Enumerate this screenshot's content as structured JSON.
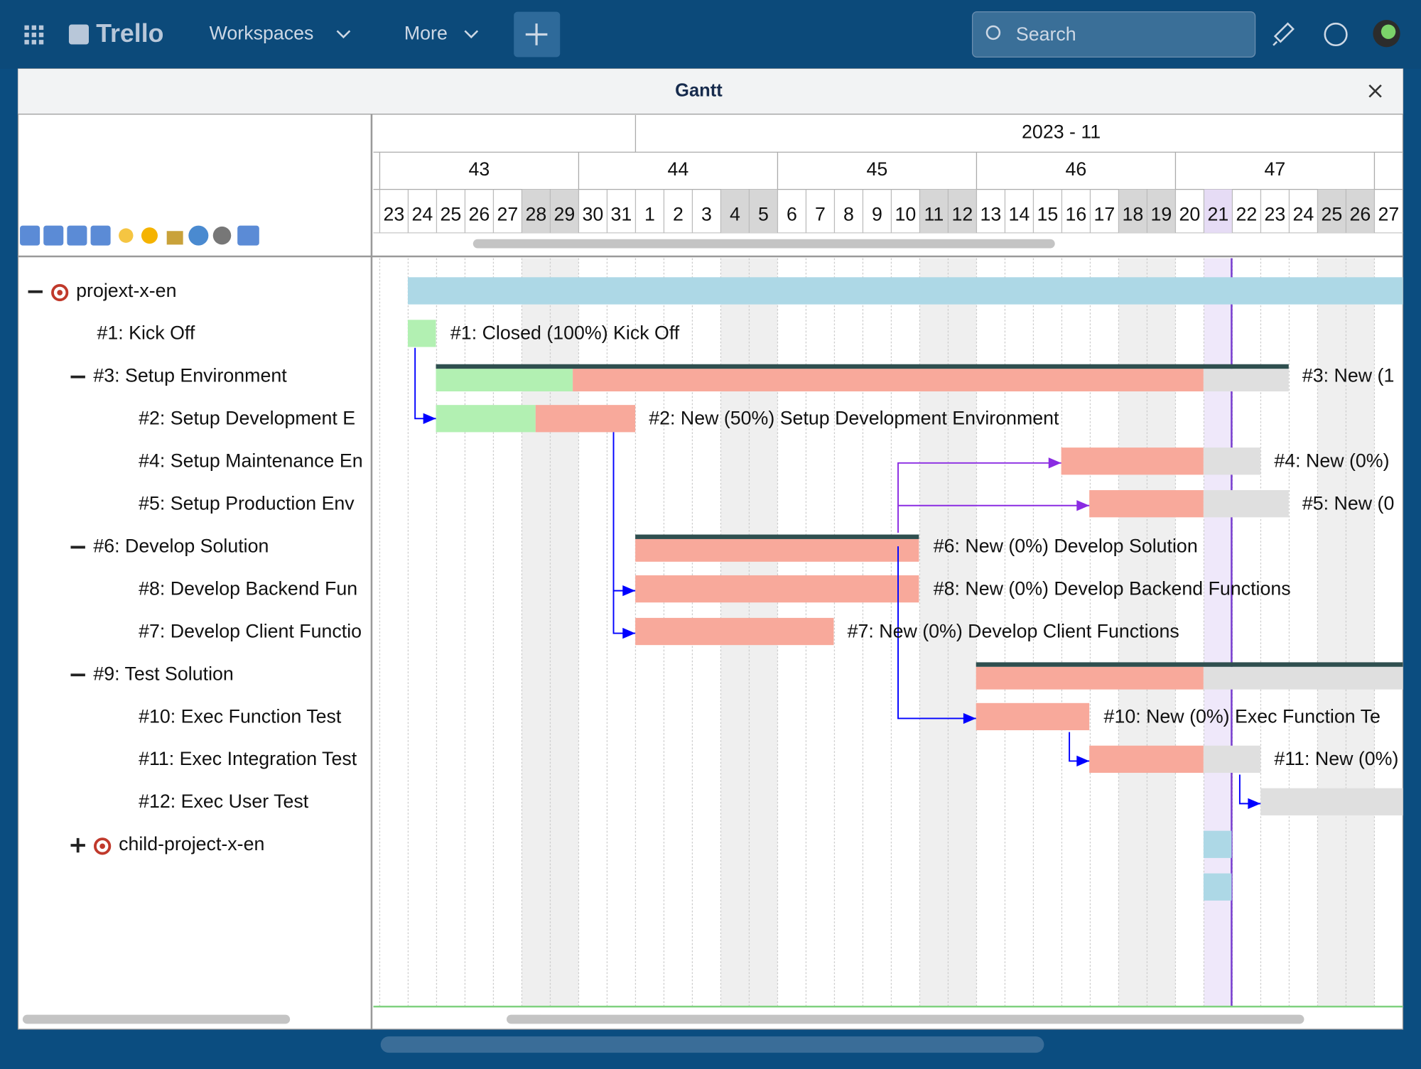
{
  "nav": {
    "logo": "Trello",
    "menus": [
      "Workspaces",
      "More"
    ],
    "search": "Search"
  },
  "gantt": {
    "title": "Gantt",
    "month": "2023 - 11",
    "weeks": [
      "43",
      "44",
      "45",
      "46",
      "47"
    ],
    "days": [
      "23",
      "24",
      "25",
      "26",
      "27",
      "28",
      "29",
      "30",
      "31",
      "1",
      "2",
      "3",
      "4",
      "5",
      "6",
      "7",
      "8",
      "9",
      "10",
      "11",
      "12",
      "13",
      "14",
      "15",
      "16",
      "17",
      "18",
      "19",
      "20",
      "21",
      "22",
      "23",
      "24",
      "25",
      "26",
      "27"
    ],
    "tree": [
      "projext-x-en",
      "#1: Kick Off",
      "#3: Setup Environment",
      "#2: Setup Development E",
      "#4: Setup Maintenance En",
      "#5: Setup Production Env",
      "#6: Develop Solution",
      "#8: Develop Backend Fun",
      "#7: Develop Client Functio",
      "#9: Test Solution",
      "#10: Exec Function Test",
      "#11: Exec Integration Test",
      "#12: Exec User Test",
      "child-project-x-en"
    ],
    "bar_labels": [
      "#1: Closed (100%) Kick Off",
      "#3: New (1",
      "#2: New (50%) Setup Development Environment",
      "#4: New (0%)",
      "#5: New (0",
      "#6: New (0%) Develop Solution",
      "#8: New (0%) Develop Backend Functions",
      "#7: New (0%) Develop Client Functions",
      "#10: New (0%) Exec Function Te",
      "#11: New (0%)"
    ]
  }
}
